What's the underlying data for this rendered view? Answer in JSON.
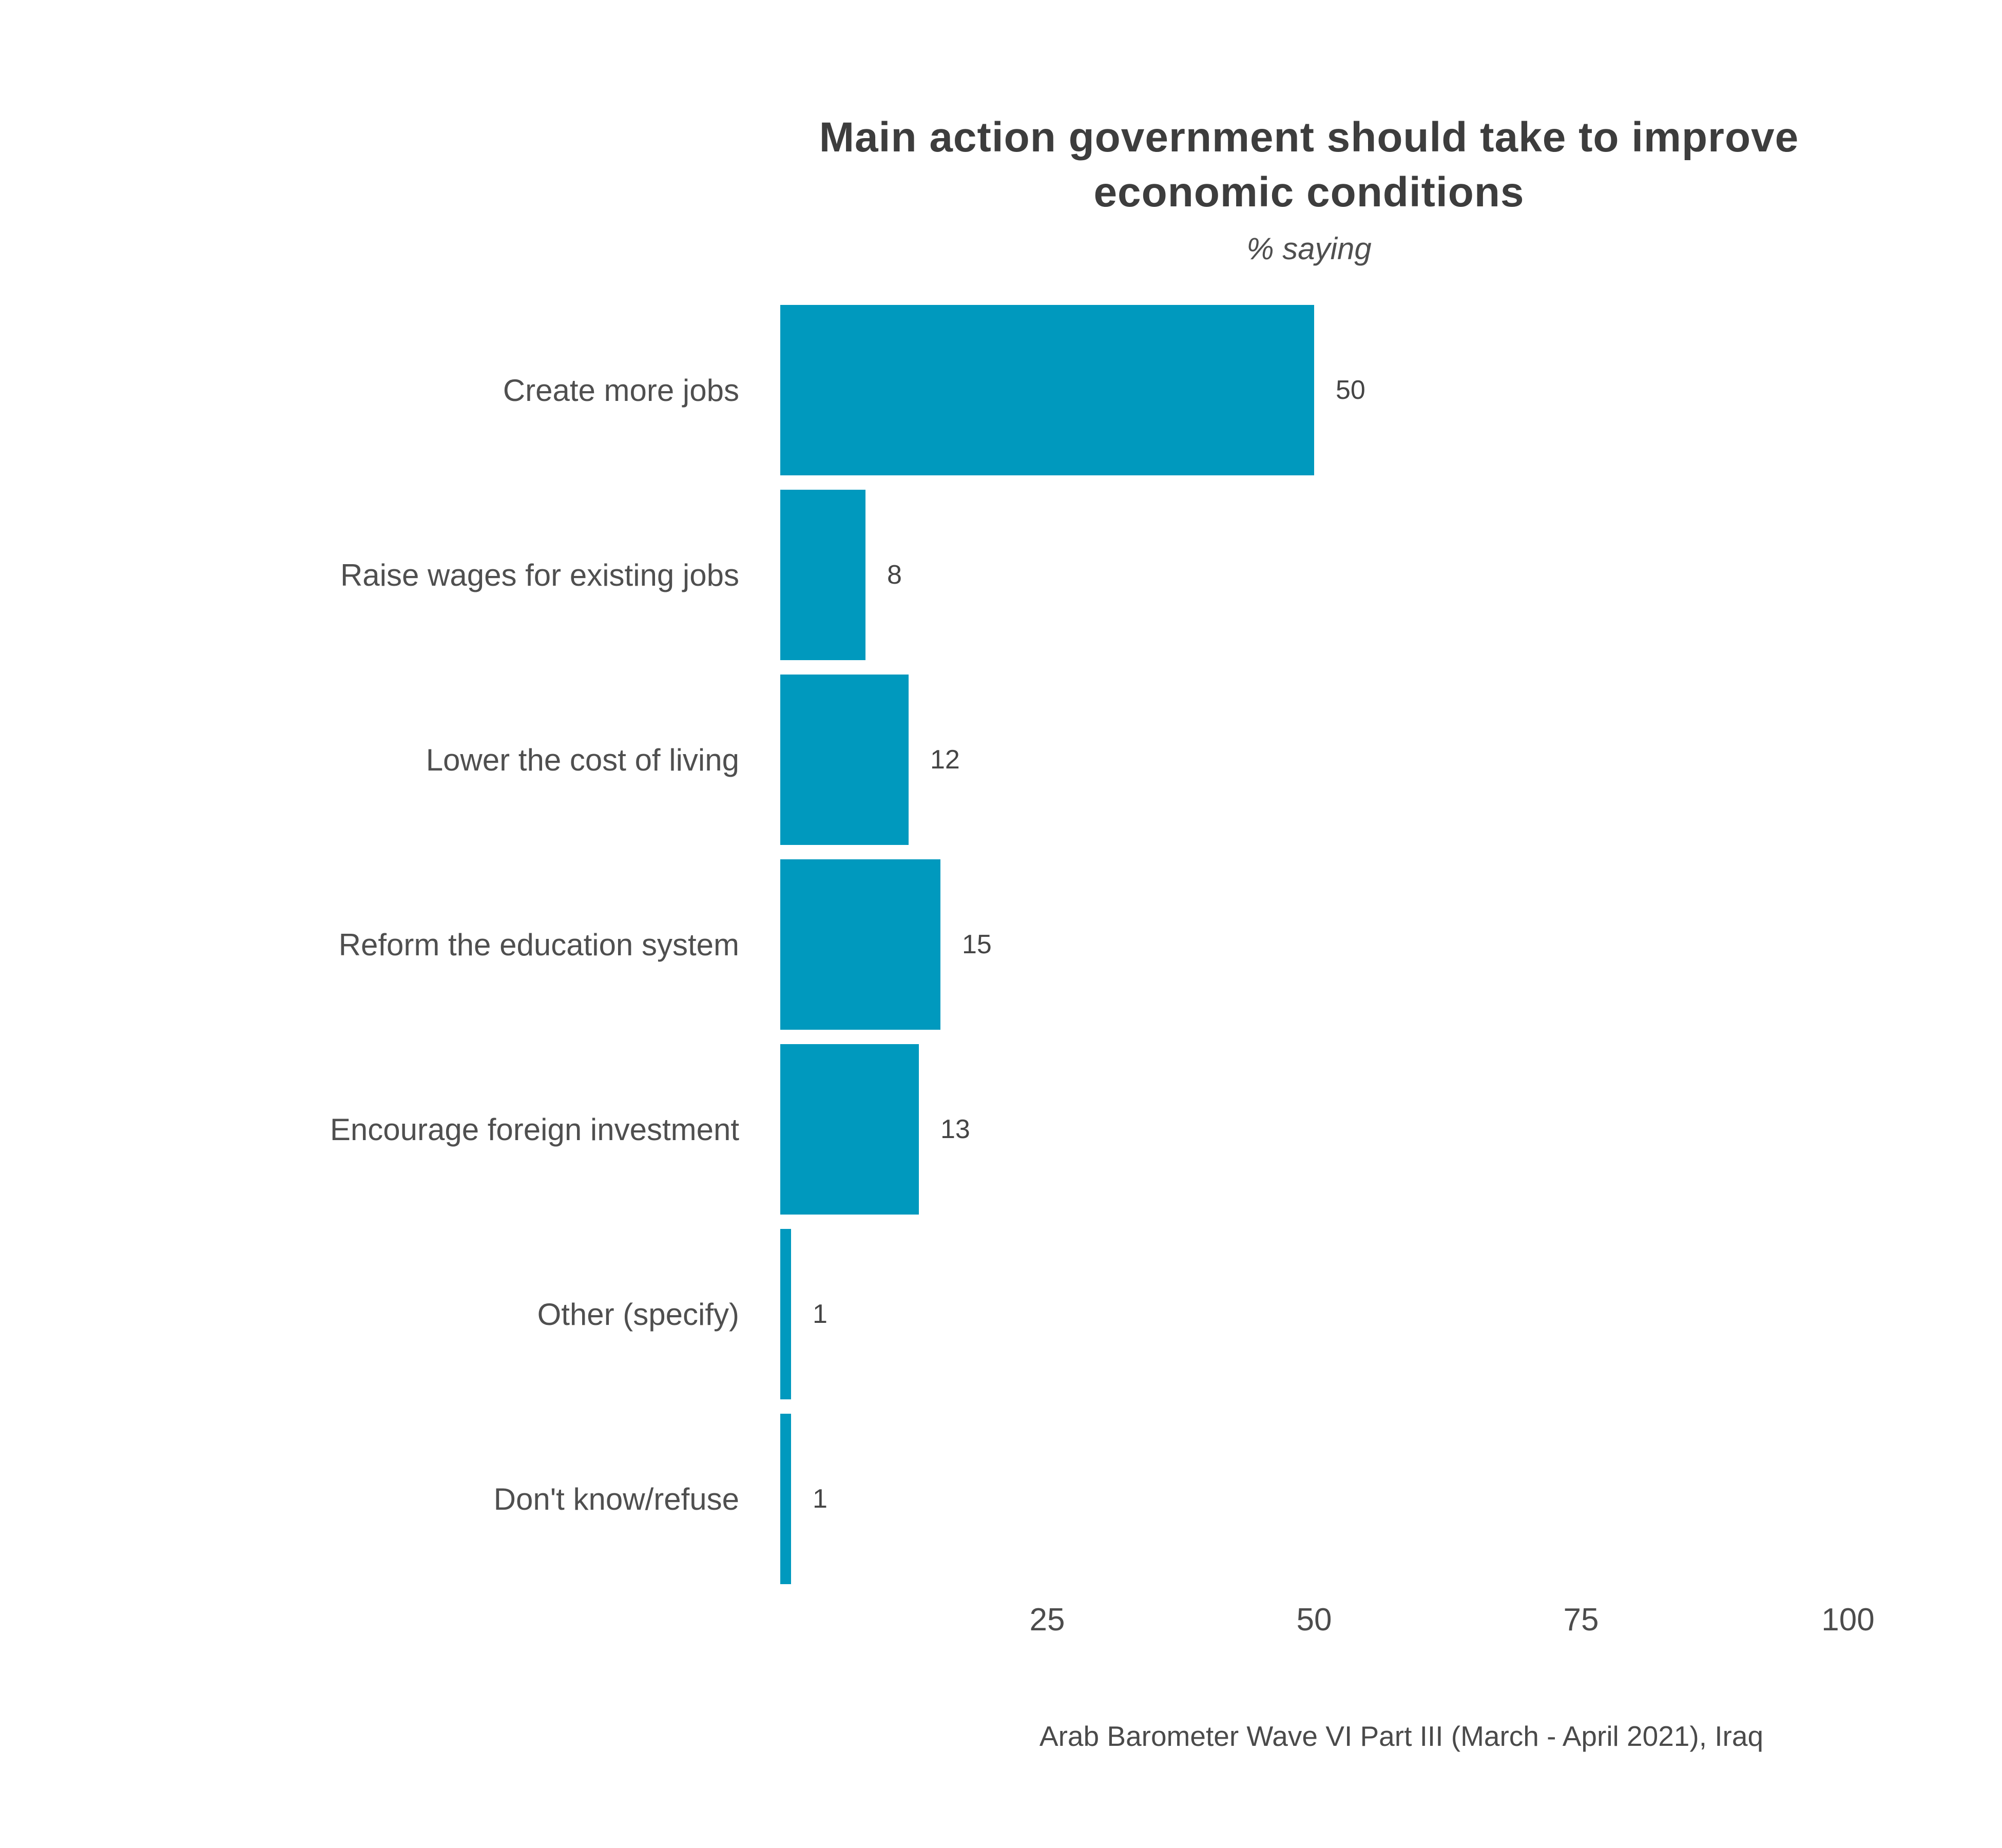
{
  "chart": {
    "title": "Main action government should take to improve economic conditions",
    "subtitle": "% saying",
    "source": "Arab Barometer Wave VI Part III (March - April 2021), Iraq"
  },
  "chart_data": {
    "type": "bar",
    "orientation": "horizontal",
    "title": "Main action government should take to improve economic conditions",
    "subtitle": "% saying",
    "categories": [
      "Create more jobs",
      "Raise wages for existing jobs",
      "Lower the cost of living",
      "Reform the education system",
      "Encourage foreign investment",
      "Other (specify)",
      "Don't know/refuse"
    ],
    "values": [
      50,
      8,
      12,
      15,
      13,
      1,
      1
    ],
    "x_ticks": [
      25,
      50,
      75,
      100
    ],
    "xlim": [
      0,
      100
    ],
    "xlabel": "",
    "ylabel": "",
    "grid": false,
    "legend": "none",
    "value_labels": true,
    "bar_color": "#0099be",
    "text_color": "#4f4f4f"
  }
}
